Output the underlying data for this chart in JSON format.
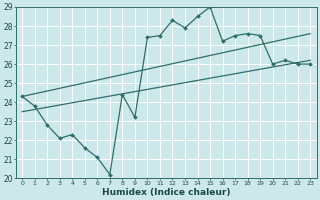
{
  "title": "",
  "xlabel": "Humidex (Indice chaleur)",
  "xlim": [
    -0.5,
    23.5
  ],
  "ylim": [
    20,
    29
  ],
  "yticks": [
    20,
    21,
    22,
    23,
    24,
    25,
    26,
    27,
    28,
    29
  ],
  "xticks": [
    0,
    1,
    2,
    3,
    4,
    5,
    6,
    7,
    8,
    9,
    10,
    11,
    12,
    13,
    14,
    15,
    16,
    17,
    18,
    19,
    20,
    21,
    22,
    23
  ],
  "bg_color": "#cde8ea",
  "grid_color": "#aed4d6",
  "line_color": "#2e6e6a",
  "line1_x": [
    0,
    1,
    2,
    3,
    4,
    5,
    6,
    7,
    8,
    9,
    10,
    11,
    12,
    13,
    14,
    15,
    16,
    17,
    18,
    19,
    20,
    21,
    22,
    23
  ],
  "line1_y": [
    24.3,
    23.8,
    22.8,
    22.1,
    22.3,
    21.6,
    21.1,
    20.2,
    24.4,
    23.2,
    27.4,
    27.5,
    28.3,
    27.9,
    28.5,
    29.0,
    27.2,
    27.5,
    27.6,
    27.5,
    26.0,
    26.2,
    26.0,
    26.0
  ],
  "line2_x": [
    0,
    23
  ],
  "line2_y": [
    24.3,
    27.6
  ],
  "line3_x": [
    0,
    23
  ],
  "line3_y": [
    23.5,
    26.2
  ]
}
